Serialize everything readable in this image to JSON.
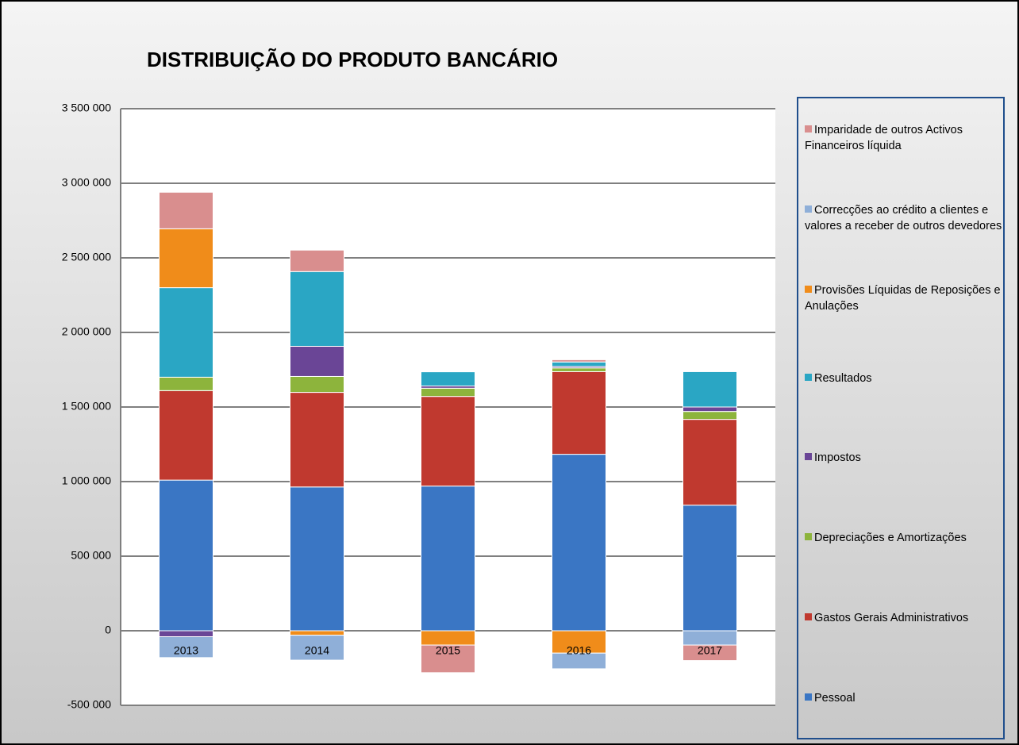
{
  "chart_data": {
    "type": "stacked_bar",
    "title": "DISTRIBUIÇÃO DO PRODUTO BANCÁRIO",
    "categories": [
      "2013",
      "2014",
      "2015",
      "2016",
      "2017"
    ],
    "series": [
      {
        "name": "Pessoal",
        "color": "#3a76c4",
        "values": [
          1010000,
          964000,
          970000,
          1183000,
          842000
        ]
      },
      {
        "name": "Gastos Gerais Administrativos",
        "color": "#c0392f",
        "values": [
          600000,
          634000,
          601000,
          554000,
          575000
        ]
      },
      {
        "name": "Depreciações e Amortizações",
        "color": "#8db43c",
        "values": [
          90000,
          107000,
          55000,
          25000,
          53000
        ]
      },
      {
        "name": "Impostos",
        "color": "#6a4596",
        "values": [
          -40000,
          202000,
          15000,
          10000,
          30000
        ]
      },
      {
        "name": "Resultados",
        "color": "#2aa6c4",
        "values": [
          600000,
          501000,
          95000,
          30000,
          237000
        ]
      },
      {
        "name": "Provisões Líquidas de Reposições e Anulações",
        "color": "#f08c1a",
        "values": [
          395000,
          -30000,
          -96000,
          -150000,
          0
        ]
      },
      {
        "name": "Correcções ao crédito a clientes e valores a receber de outros devedores",
        "color": "#8fafd8",
        "values": [
          -140000,
          -167000,
          0,
          -105000,
          -96000
        ]
      },
      {
        "name": "Imparidade de outros Activos Financeiros líquida",
        "color": "#d98e8e",
        "values": [
          245000,
          144000,
          -185000,
          15000,
          -104000
        ]
      }
    ],
    "ylim": [
      -500000,
      3500000
    ],
    "yticks": [
      {
        "value": -500000,
        "label": "-500 000"
      },
      0,
      {
        "value": 500000,
        "label": "500 000"
      },
      {
        "value": 1000000,
        "label": "1 000 000"
      },
      {
        "value": 1500000,
        "label": "1 500 000"
      },
      {
        "value": 2000000,
        "label": "2 000 000"
      },
      {
        "value": 2500000,
        "label": "2 500 000"
      },
      {
        "value": 3000000,
        "label": "3 000 000"
      },
      {
        "value": 3500000,
        "label": "3 500 000"
      }
    ],
    "grid": true,
    "legend": "right"
  }
}
